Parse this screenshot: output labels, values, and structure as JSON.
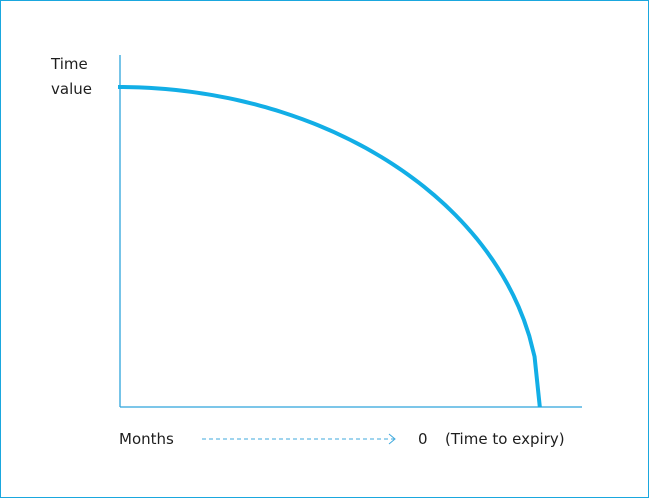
{
  "chart_data": {
    "type": "line",
    "title": "",
    "ylabel_lines": [
      "Time",
      "value"
    ],
    "x_start_label": "Months",
    "x_end_label": "0",
    "x_end_note": "(Time to expiry)",
    "grid": false,
    "legend": "none",
    "x": [
      0,
      0.1,
      0.2,
      0.3,
      0.4,
      0.5,
      0.6,
      0.7,
      0.8,
      0.9,
      0.95,
      1.0
    ],
    "y": [
      1.0,
      0.99,
      0.98,
      0.954,
      0.916,
      0.866,
      0.8,
      0.714,
      0.6,
      0.436,
      0.312,
      0.0
    ],
    "xlim": [
      0,
      1.1
    ],
    "ylim": [
      0,
      1.0
    ],
    "series": [
      {
        "color": "#12aee6"
      }
    ],
    "axis_color": "#2ea4dc",
    "frame_color": "#1aa7de"
  }
}
